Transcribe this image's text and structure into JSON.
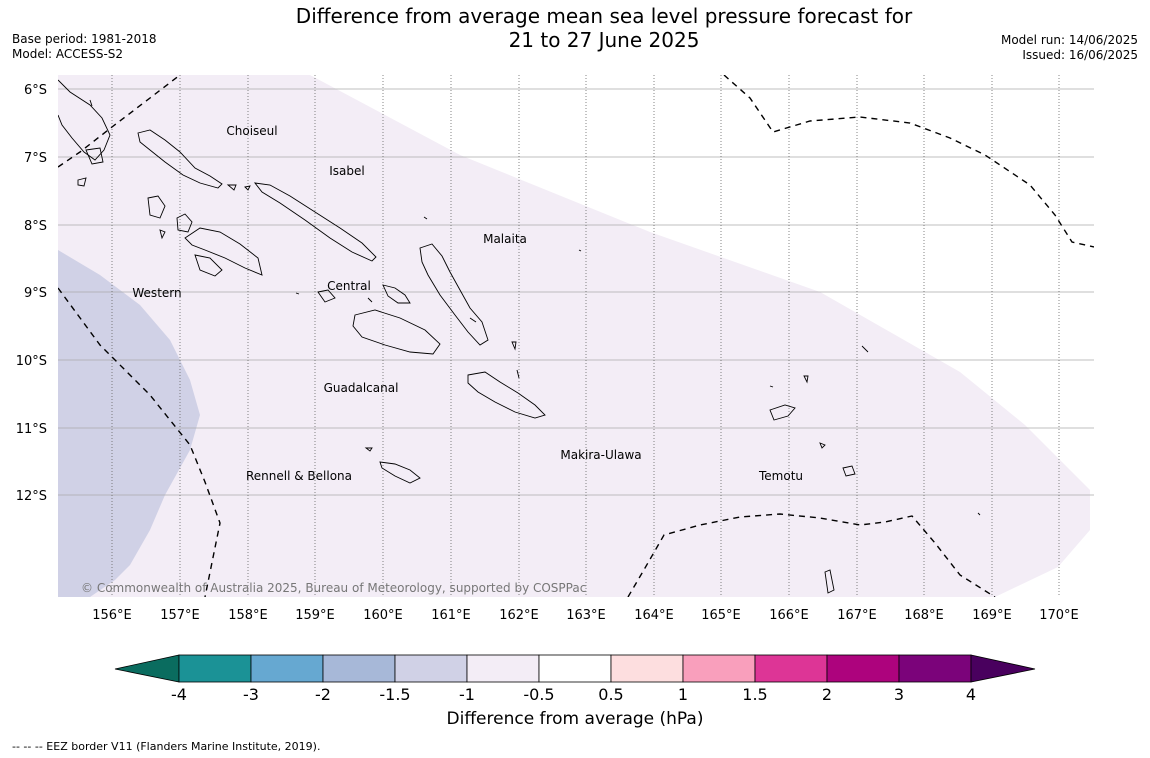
{
  "header": {
    "title_line1": "Difference from average mean sea level pressure forecast for",
    "title_line2": "21 to 27 June 2025",
    "base_period": "Base period: 1981-2018",
    "model": "Model: ACCESS-S2",
    "model_run": "Model run: 14/06/2025",
    "issued": "Issued: 16/06/2025"
  },
  "map": {
    "lat_labels": [
      "6°S",
      "7°S",
      "8°S",
      "9°S",
      "10°S",
      "11°S",
      "12°S"
    ],
    "lon_labels": [
      "156°E",
      "157°E",
      "158°E",
      "159°E",
      "160°E",
      "161°E",
      "162°E",
      "163°E",
      "164°E",
      "165°E",
      "166°E",
      "167°E",
      "168°E",
      "169°E",
      "170°E"
    ],
    "places": [
      {
        "name": "Choiseul"
      },
      {
        "name": "Isabel"
      },
      {
        "name": "Malaita"
      },
      {
        "name": "Western"
      },
      {
        "name": "Central"
      },
      {
        "name": "Guadalcanal"
      },
      {
        "name": "Makira-Ulawa"
      },
      {
        "name": "Rennell & Bellona"
      },
      {
        "name": "Temotu"
      }
    ],
    "copyright": "© Commonwealth of Australia 2025, Bureau of Meteorology, supported by COSPPac",
    "colors": {
      "band_minus_1_5_to_1": "#d0d1e6",
      "band_minus_1_to_0_5": "#f3edf6",
      "coast": "#000000",
      "grid": "#aaaaaa"
    }
  },
  "colorbar": {
    "label": "Difference from average (hPa)",
    "ticks": [
      "-4",
      "-3",
      "-2",
      "-1.5",
      "-1",
      "-0.5",
      "0.5",
      "1",
      "1.5",
      "2",
      "3",
      "4"
    ],
    "colors": [
      "#1b9296",
      "#66a8d1",
      "#a7b8d8",
      "#d0d1e6",
      "#f3edf6",
      "#ffffff",
      "#fddedf",
      "#f99fbc",
      "#dd3596",
      "#ad037d",
      "#7b037a"
    ],
    "under_color": "#0a6c5f",
    "over_color": "#49005e"
  },
  "footer": {
    "legend": "--  --  -- EEZ border V11 (Flanders Marine Institute, 2019)."
  }
}
